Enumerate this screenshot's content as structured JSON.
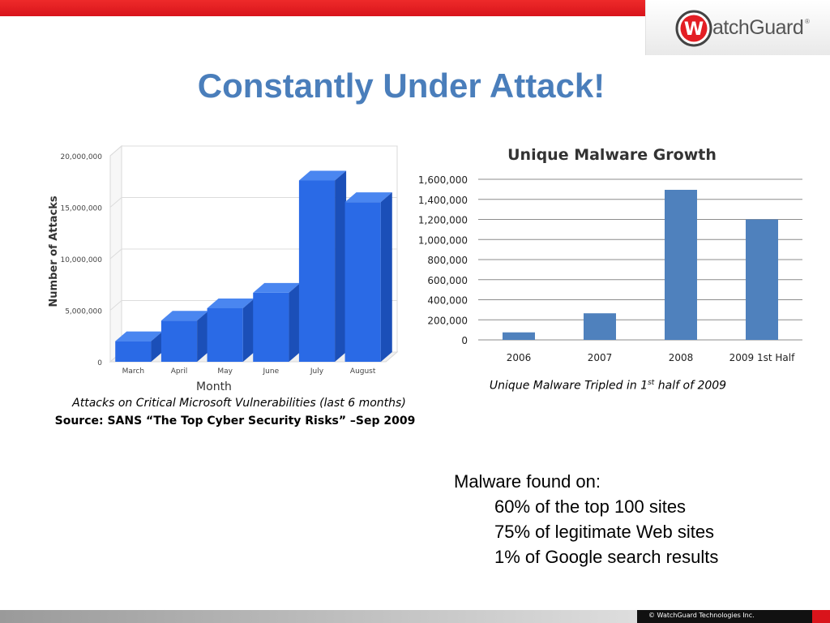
{
  "slide": {
    "title": "Constantly Under Attack!",
    "brand": {
      "letter": "W",
      "name": "atchGuard",
      "tm": "®",
      "color": "#e31e24"
    },
    "accent_color": "#4a7ebb",
    "copyright": "© WatchGuard Technologies Inc."
  },
  "captions": {
    "left_caption": "Attacks on Critical Microsoft Vulnerabilities (last 6 months)",
    "left_source": "Source: SANS “The Top Cyber Security Risks” –Sep 2009",
    "right_caption_pre": "Unique Malware Tripled in 1",
    "right_caption_sup": "st",
    "right_caption_post": " half of 2009"
  },
  "malware_found": {
    "heading": "Malware found on:",
    "items": [
      "60% of the top 100 sites",
      "75% of legitimate Web sites",
      "1% of Google search results"
    ]
  },
  "chart_data": [
    {
      "type": "bar",
      "title": "",
      "xlabel": "Month",
      "ylabel": "Number of Attacks",
      "categories": [
        "March",
        "April",
        "May",
        "June",
        "July",
        "August"
      ],
      "values": [
        2000000,
        4000000,
        5200000,
        6700000,
        17600000,
        15500000
      ],
      "ylim": [
        0,
        20000000
      ],
      "yticks": [
        "0",
        "5,000,000",
        "10,000,000",
        "15,000,000",
        "20,000,000"
      ],
      "grid": true,
      "color": "#2a6ae6"
    },
    {
      "type": "bar",
      "title": "Unique Malware Growth",
      "xlabel": "",
      "ylabel": "",
      "categories": [
        "2006",
        "2007",
        "2008",
        "2009 1st Half"
      ],
      "values": [
        75000,
        265000,
        1495000,
        1200000
      ],
      "ylim": [
        0,
        1600000
      ],
      "yticks": [
        "0",
        "200,000",
        "400,000",
        "600,000",
        "800,000",
        "1,000,000",
        "1,200,000",
        "1,400,000",
        "1,600,000"
      ],
      "grid": true,
      "color": "#4f81bd"
    }
  ]
}
